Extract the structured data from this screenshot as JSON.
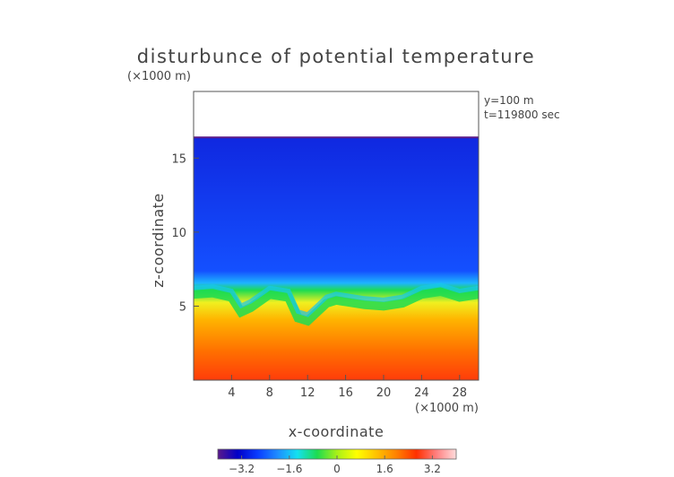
{
  "chart_data": {
    "type": "heatmap",
    "title": "disturbunce of potential temperature",
    "xlabel": "x-coordinate",
    "ylabel": "z-coordinate",
    "x_unit": "(×1000 m)",
    "y_unit": "(×1000 m)",
    "annotations": [
      "y=100 m",
      "t=119800 sec"
    ],
    "xlim": [
      0,
      30
    ],
    "ylim": [
      0,
      19.5
    ],
    "x_ticks": [
      4,
      8,
      12,
      16,
      20,
      24,
      28
    ],
    "y_ticks": [
      5,
      10,
      15
    ],
    "x_tick_labels": [
      "4",
      "8",
      "12",
      "16",
      "20",
      "24",
      "28"
    ],
    "y_tick_labels": [
      "5",
      "10",
      "15"
    ],
    "data_top_z": 16.4,
    "colorbar": {
      "range": [
        -4.0,
        4.0
      ],
      "ticks": [
        -3.2,
        -1.6,
        0,
        1.6,
        3.2
      ],
      "tick_labels": [
        "−3.2",
        "−1.6",
        "0",
        "1.6",
        "3.2"
      ],
      "colors": [
        "#5a1a8a",
        "#0000c8",
        "#0a3cff",
        "#1e8cff",
        "#14e0f0",
        "#1edc50",
        "#a8f018",
        "#ffff00",
        "#ffc000",
        "#ff8000",
        "#ff3000",
        "#ff8080",
        "#ffdcdc"
      ]
    },
    "layers": [
      {
        "description_value": "upper layer (z 7–16.4)",
        "value": -2.6
      },
      {
        "description_value": "transition (z ~6)",
        "value": -0.2
      },
      {
        "description_value": "lower layer (z 0–5)",
        "value": 2.3
      }
    ],
    "interface_profile": {
      "x": [
        0,
        2,
        4,
        5,
        6,
        8,
        10,
        11,
        12,
        14,
        15,
        16,
        18,
        20,
        22,
        24,
        26,
        28,
        30
      ],
      "z": [
        5.8,
        5.9,
        5.6,
        4.6,
        4.9,
        5.8,
        5.6,
        4.2,
        4.0,
        5.2,
        5.4,
        5.3,
        5.1,
        5.0,
        5.2,
        5.8,
        6.0,
        5.6,
        5.8
      ]
    }
  }
}
